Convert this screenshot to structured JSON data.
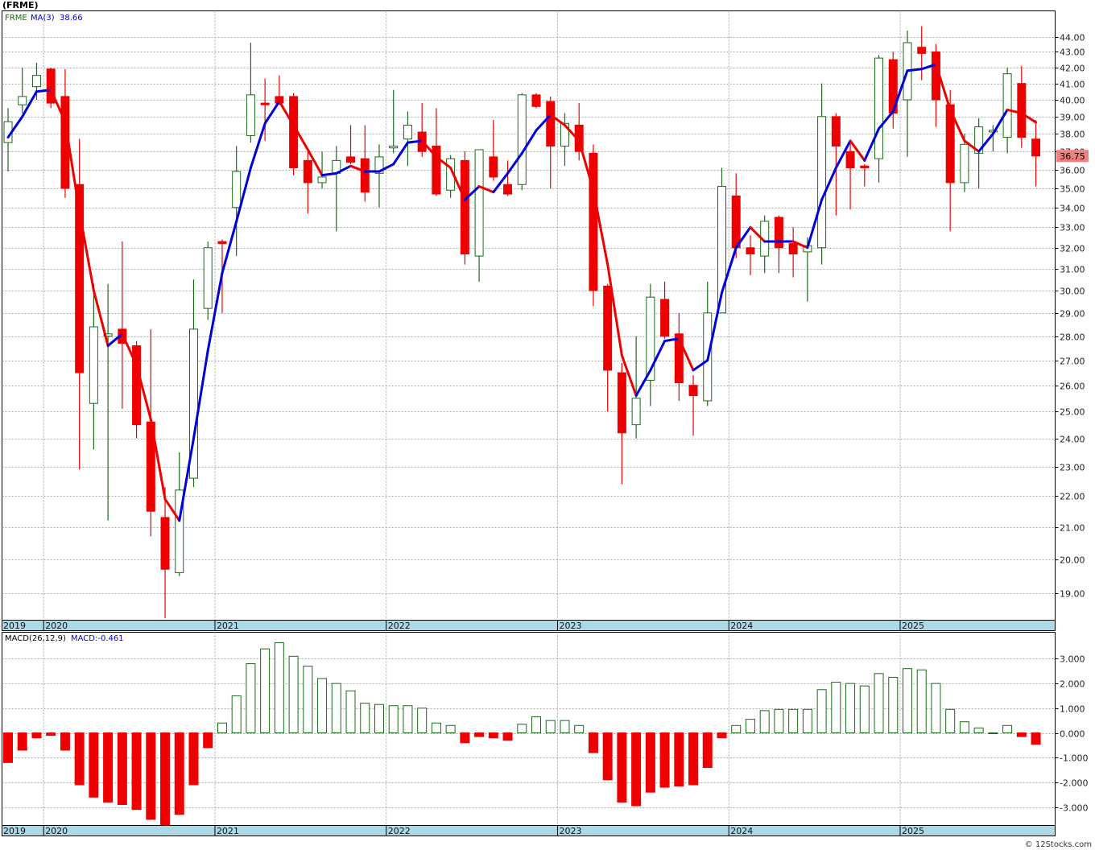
{
  "header": {
    "title": "(FRME)",
    "ticker": "FRME",
    "ma_label": "MA(3)",
    "ma_value": "38.66",
    "macd_params": "MACD(26,12,9)",
    "macd_value": "MACD:-0.461",
    "last_price": "36.75",
    "watermark": "© 12Stocks.com"
  },
  "colors": {
    "up": "#1a6b1a",
    "down": "#ee0000",
    "ma_up": "#0000dd",
    "ma_down": "#ee0000",
    "axis_bar": "#add8e6",
    "grid": "#aaaaaa",
    "price_tag": "#f08080"
  },
  "chart_data": [
    {
      "type": "candlestick",
      "name": "FRME",
      "x_labels": [
        "2019",
        "2020",
        "2021",
        "2022",
        "2023",
        "2024",
        "2025"
      ],
      "x_label_month_index": [
        0,
        3,
        15,
        27,
        39,
        51,
        63
      ],
      "y_ticks": [
        "19.00",
        "20.00",
        "21.00",
        "22.00",
        "23.00",
        "24.00",
        "25.00",
        "26.00",
        "27.00",
        "28.00",
        "29.00",
        "30.00",
        "31.00",
        "32.00",
        "33.00",
        "34.00",
        "35.00",
        "36.00",
        "37.00",
        "38.00",
        "39.00",
        "40.00",
        "41.00",
        "42.00",
        "43.00",
        "44.00"
      ],
      "y_range": [
        18.2,
        45.5
      ],
      "scale": "log",
      "grid": true,
      "candles": [
        {
          "o": 37.5,
          "h": 39.5,
          "l": 35.9,
          "c": 38.7
        },
        {
          "o": 39.7,
          "h": 42.0,
          "l": 39.2,
          "c": 40.2
        },
        {
          "o": 40.8,
          "h": 42.3,
          "l": 40.0,
          "c": 41.5
        },
        {
          "o": 41.9,
          "h": 42.0,
          "l": 39.5,
          "c": 39.8
        },
        {
          "o": 40.2,
          "h": 41.9,
          "l": 34.5,
          "c": 35.0
        },
        {
          "o": 35.2,
          "h": 37.7,
          "l": 22.9,
          "c": 26.5
        },
        {
          "o": 25.3,
          "h": 30.3,
          "l": 23.6,
          "c": 28.4
        },
        {
          "o": 28.0,
          "h": 30.3,
          "l": 21.2,
          "c": 28.1
        },
        {
          "o": 28.3,
          "h": 32.3,
          "l": 25.1,
          "c": 27.7
        },
        {
          "o": 27.6,
          "h": 27.8,
          "l": 24.0,
          "c": 24.5
        },
        {
          "o": 24.6,
          "h": 28.3,
          "l": 20.7,
          "c": 21.5
        },
        {
          "o": 21.3,
          "h": 22.3,
          "l": 18.3,
          "c": 19.7
        },
        {
          "o": 19.6,
          "h": 23.5,
          "l": 19.5,
          "c": 22.2
        },
        {
          "o": 22.6,
          "h": 30.5,
          "l": 22.3,
          "c": 28.3
        },
        {
          "o": 29.2,
          "h": 32.3,
          "l": 28.7,
          "c": 32.0
        },
        {
          "o": 32.3,
          "h": 32.4,
          "l": 29.0,
          "c": 32.2
        },
        {
          "o": 34.0,
          "h": 37.3,
          "l": 31.6,
          "c": 35.9
        },
        {
          "o": 37.9,
          "h": 43.6,
          "l": 37.5,
          "c": 40.3
        },
        {
          "o": 39.8,
          "h": 41.3,
          "l": 37.6,
          "c": 39.7
        },
        {
          "o": 40.2,
          "h": 41.5,
          "l": 39.7,
          "c": 39.8
        },
        {
          "o": 40.2,
          "h": 40.4,
          "l": 35.7,
          "c": 36.1
        },
        {
          "o": 36.5,
          "h": 37.1,
          "l": 33.7,
          "c": 35.3
        },
        {
          "o": 35.3,
          "h": 37.0,
          "l": 35.0,
          "c": 35.6
        },
        {
          "o": 35.8,
          "h": 37.3,
          "l": 32.8,
          "c": 36.5
        },
        {
          "o": 36.7,
          "h": 38.5,
          "l": 36.3,
          "c": 36.4
        },
        {
          "o": 36.6,
          "h": 38.5,
          "l": 34.3,
          "c": 34.8
        },
        {
          "o": 35.8,
          "h": 37.4,
          "l": 34.0,
          "c": 36.7
        },
        {
          "o": 37.2,
          "h": 40.6,
          "l": 36.9,
          "c": 37.3
        },
        {
          "o": 37.7,
          "h": 39.3,
          "l": 36.2,
          "c": 38.5
        },
        {
          "o": 38.1,
          "h": 39.8,
          "l": 36.7,
          "c": 37.0
        },
        {
          "o": 37.3,
          "h": 39.5,
          "l": 34.6,
          "c": 34.7
        },
        {
          "o": 34.9,
          "h": 36.8,
          "l": 34.5,
          "c": 36.6
        },
        {
          "o": 36.5,
          "h": 37.0,
          "l": 31.2,
          "c": 31.7
        },
        {
          "o": 31.6,
          "h": 37.1,
          "l": 30.4,
          "c": 37.1
        },
        {
          "o": 36.7,
          "h": 38.8,
          "l": 35.4,
          "c": 35.6
        },
        {
          "o": 35.2,
          "h": 36.5,
          "l": 34.6,
          "c": 34.7
        },
        {
          "o": 35.2,
          "h": 40.4,
          "l": 34.9,
          "c": 40.3
        },
        {
          "o": 40.3,
          "h": 40.4,
          "l": 39.5,
          "c": 39.6
        },
        {
          "o": 39.9,
          "h": 40.2,
          "l": 35.0,
          "c": 37.3
        },
        {
          "o": 37.3,
          "h": 39.2,
          "l": 36.2,
          "c": 38.6
        },
        {
          "o": 38.5,
          "h": 39.8,
          "l": 36.5,
          "c": 37.0
        },
        {
          "o": 36.9,
          "h": 37.4,
          "l": 29.3,
          "c": 30.0
        },
        {
          "o": 30.2,
          "h": 30.3,
          "l": 25.0,
          "c": 26.6
        },
        {
          "o": 26.5,
          "h": 26.9,
          "l": 22.4,
          "c": 24.2
        },
        {
          "o": 24.5,
          "h": 28.0,
          "l": 24.0,
          "c": 25.5
        },
        {
          "o": 26.2,
          "h": 30.3,
          "l": 25.2,
          "c": 29.7
        },
        {
          "o": 29.6,
          "h": 30.4,
          "l": 27.9,
          "c": 28.0
        },
        {
          "o": 28.1,
          "h": 29.0,
          "l": 25.4,
          "c": 26.1
        },
        {
          "o": 26.0,
          "h": 26.4,
          "l": 24.1,
          "c": 25.6
        },
        {
          "o": 25.4,
          "h": 30.4,
          "l": 25.2,
          "c": 29.0
        },
        {
          "o": 29.0,
          "h": 36.1,
          "l": 29.0,
          "c": 35.1
        },
        {
          "o": 34.6,
          "h": 35.8,
          "l": 31.5,
          "c": 32.0
        },
        {
          "o": 32.0,
          "h": 32.6,
          "l": 30.7,
          "c": 31.7
        },
        {
          "o": 31.6,
          "h": 33.6,
          "l": 30.8,
          "c": 33.3
        },
        {
          "o": 33.5,
          "h": 33.6,
          "l": 30.8,
          "c": 32.0
        },
        {
          "o": 32.2,
          "h": 33.0,
          "l": 30.6,
          "c": 31.7
        },
        {
          "o": 31.8,
          "h": 32.5,
          "l": 29.5,
          "c": 32.1
        },
        {
          "o": 32.0,
          "h": 41.0,
          "l": 31.2,
          "c": 39.0
        },
        {
          "o": 39.0,
          "h": 39.2,
          "l": 33.6,
          "c": 37.3
        },
        {
          "o": 37.0,
          "h": 37.6,
          "l": 33.9,
          "c": 36.1
        },
        {
          "o": 36.2,
          "h": 36.3,
          "l": 35.1,
          "c": 36.1
        },
        {
          "o": 36.6,
          "h": 42.8,
          "l": 35.3,
          "c": 42.6
        },
        {
          "o": 42.5,
          "h": 43.0,
          "l": 38.3,
          "c": 39.2
        },
        {
          "o": 40.0,
          "h": 44.4,
          "l": 36.7,
          "c": 43.6
        },
        {
          "o": 43.3,
          "h": 44.7,
          "l": 41.2,
          "c": 42.9
        },
        {
          "o": 43.0,
          "h": 43.5,
          "l": 38.4,
          "c": 40.0
        },
        {
          "o": 39.7,
          "h": 40.6,
          "l": 32.8,
          "c": 35.3
        },
        {
          "o": 35.3,
          "h": 38.0,
          "l": 34.8,
          "c": 37.4
        },
        {
          "o": 36.9,
          "h": 38.9,
          "l": 35.0,
          "c": 38.4
        },
        {
          "o": 38.2,
          "h": 38.5,
          "l": 37.0,
          "c": 38.2
        },
        {
          "o": 37.8,
          "h": 42.0,
          "l": 36.9,
          "c": 41.6
        },
        {
          "o": 41.0,
          "h": 42.1,
          "l": 37.2,
          "c": 37.8
        },
        {
          "o": 37.7,
          "h": 38.8,
          "l": 35.1,
          "c": 36.75
        }
      ],
      "ma3": [
        37.8,
        39.0,
        40.5,
        40.6,
        38.7,
        33.8,
        30.0,
        27.6,
        28.1,
        26.8,
        24.7,
        21.9,
        21.2,
        24.0,
        27.4,
        30.8,
        33.3,
        36.1,
        38.6,
        39.9,
        38.5,
        37.1,
        35.7,
        35.8,
        36.2,
        35.9,
        35.9,
        36.3,
        37.5,
        37.6,
        36.7,
        36.1,
        34.4,
        35.1,
        34.8,
        35.8,
        36.9,
        38.2,
        39.1,
        38.5,
        37.6,
        34.9,
        31.2,
        27.2,
        25.6,
        26.6,
        27.8,
        27.9,
        26.6,
        27.0,
        29.9,
        32.0,
        33.0,
        32.3,
        32.3,
        32.3,
        32.0,
        34.4,
        36.1,
        37.6,
        36.5,
        38.3,
        39.3,
        41.8,
        41.9,
        42.2,
        39.4,
        37.6,
        37.0,
        38.0,
        39.4,
        39.2,
        38.66
      ]
    },
    {
      "type": "bar",
      "name": "MACD(26,12,9)",
      "y_ticks": [
        "3.000",
        "2.000",
        "1.000",
        "0.000",
        "-1.000",
        "-2.000",
        "-3.000"
      ],
      "y_range": [
        -3.8,
        3.9
      ],
      "values": [
        -1.2,
        -0.7,
        -0.2,
        -0.1,
        -0.7,
        -2.1,
        -2.6,
        -2.8,
        -2.9,
        -3.1,
        -3.5,
        -3.8,
        -3.3,
        -2.1,
        -0.6,
        0.4,
        1.5,
        2.8,
        3.4,
        3.65,
        3.1,
        2.7,
        2.2,
        2.0,
        1.7,
        1.2,
        1.15,
        1.1,
        1.1,
        1.0,
        0.4,
        0.3,
        -0.4,
        -0.15,
        -0.2,
        -0.3,
        0.35,
        0.65,
        0.5,
        0.5,
        0.3,
        -0.8,
        -1.9,
        -2.8,
        -2.95,
        -2.4,
        -2.2,
        -2.15,
        -2.1,
        -1.4,
        -0.2,
        0.3,
        0.55,
        0.9,
        0.95,
        0.95,
        0.95,
        1.75,
        2.05,
        2.0,
        1.9,
        2.4,
        2.25,
        2.6,
        2.55,
        2.0,
        0.95,
        0.45,
        0.2,
        0.0,
        0.3,
        -0.15,
        -0.46
      ]
    }
  ]
}
